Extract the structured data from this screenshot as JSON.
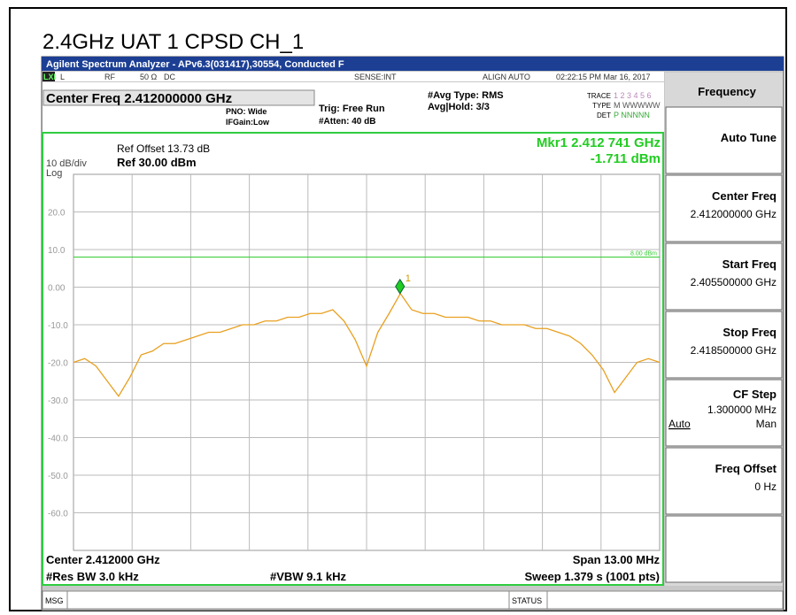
{
  "title": "2.4GHz UAT 1 CPSD CH_1",
  "window_title": "Agilent Spectrum Analyzer - APv6.3(031417),30554, Conducted F",
  "status_row": [
    "LXI",
    "L",
    "RF",
    "50 Ω",
    "DC",
    "SENSE:INT",
    "ALIGN AUTO",
    "02:22:15 PM Mar 16, 2017"
  ],
  "settings": {
    "center_freq": "Center Freq 2.412000000 GHz",
    "pno": "PNO: Wide",
    "ifgain": "IFGain:Low",
    "trig": "Trig: Free Run",
    "atten": "#Atten: 40 dB",
    "avg_type": "#Avg Type: RMS",
    "avg_hold": "Avg|Hold: 3/3",
    "trace_label": "TRACE",
    "trace_value": "1 2 3 4 5 6",
    "type_label": "TYPE",
    "type_value": "M WWWWW",
    "det_label": "DET",
    "det_value": "P NNNNN"
  },
  "chart_data": {
    "type": "line",
    "ref_offset": "Ref Offset 13.73 dB",
    "ref_level": "Ref 30.00 dBm",
    "scale": "10 dB/div",
    "scale_type": "Log",
    "marker_label": "Mkr1 2.412 741 GHz",
    "marker_value": "-1.711 dBm",
    "marker": {
      "name": "1",
      "x": 2.412741,
      "y": -1.711,
      "color": "#22cc22"
    },
    "display_line": {
      "value": 8,
      "label": "8.00 dBm",
      "color": "#33cc33"
    },
    "center": "Center 2.412000 GHz",
    "span": "Span 13.00 MHz",
    "rbw": "#Res BW 3.0 kHz",
    "vbw": "#VBW 9.1 kHz",
    "sweep": "Sweep  1.379 s (1001 pts)",
    "xlim": [
      2.4055,
      2.4185
    ],
    "ylim": [
      -70,
      30
    ],
    "yticks": [
      {
        "value": 20,
        "label": "20.0"
      },
      {
        "value": 10,
        "label": "10.0"
      },
      {
        "value": 0,
        "label": "0.00"
      },
      {
        "value": -10,
        "label": "-10.0"
      },
      {
        "value": -20,
        "label": "-20.0"
      },
      {
        "value": -30,
        "label": "-30.0"
      },
      {
        "value": -40,
        "label": "-40.0"
      },
      {
        "value": -50,
        "label": "-50.0"
      },
      {
        "value": -60,
        "label": "-60.0"
      }
    ],
    "grid": true,
    "color": "#e8a020",
    "x": [
      2.4055,
      2.40575,
      2.406,
      2.40625,
      2.4065,
      2.40675,
      2.407,
      2.40725,
      2.4075,
      2.40775,
      2.408,
      2.40825,
      2.4085,
      2.40875,
      2.409,
      2.40925,
      2.4095,
      2.40975,
      2.41,
      2.41025,
      2.4105,
      2.41075,
      2.411,
      2.41125,
      2.4115,
      2.41175,
      2.412,
      2.41225,
      2.4125,
      2.41275,
      2.413,
      2.41325,
      2.4135,
      2.41375,
      2.414,
      2.41425,
      2.4145,
      2.41475,
      2.415,
      2.41525,
      2.4155,
      2.41575,
      2.416,
      2.41625,
      2.4165,
      2.41675,
      2.417,
      2.41725,
      2.4175,
      2.41775,
      2.418,
      2.41825,
      2.4185
    ],
    "values": [
      -20,
      -19,
      -21,
      -25,
      -29,
      -24,
      -18,
      -17,
      -15,
      -15,
      -14,
      -13,
      -12,
      -12,
      -11,
      -10,
      -10,
      -9,
      -9,
      -8,
      -8,
      -7,
      -7,
      -6,
      -9,
      -14,
      -21,
      -12,
      -7,
      -1.7,
      -6,
      -7,
      -7,
      -8,
      -8,
      -8,
      -9,
      -9,
      -10,
      -10,
      -10,
      -11,
      -11,
      -12,
      -13,
      -15,
      -18,
      -22,
      -28,
      -24,
      -20,
      -19,
      -20
    ]
  },
  "softkeys": {
    "header": "Frequency",
    "auto_tune": "Auto Tune",
    "center_freq": {
      "label": "Center Freq",
      "value": "2.412000000 GHz"
    },
    "start_freq": {
      "label": "Start Freq",
      "value": "2.405500000 GHz"
    },
    "stop_freq": {
      "label": "Stop Freq",
      "value": "2.418500000 GHz"
    },
    "cf_step": {
      "label": "CF Step",
      "value": "1.300000 MHz",
      "auto": "Auto",
      "man": "Man"
    },
    "freq_offset": {
      "label": "Freq Offset",
      "value": "0 Hz"
    }
  },
  "message_bar": {
    "msg": "MSG",
    "status": "STATUS"
  }
}
